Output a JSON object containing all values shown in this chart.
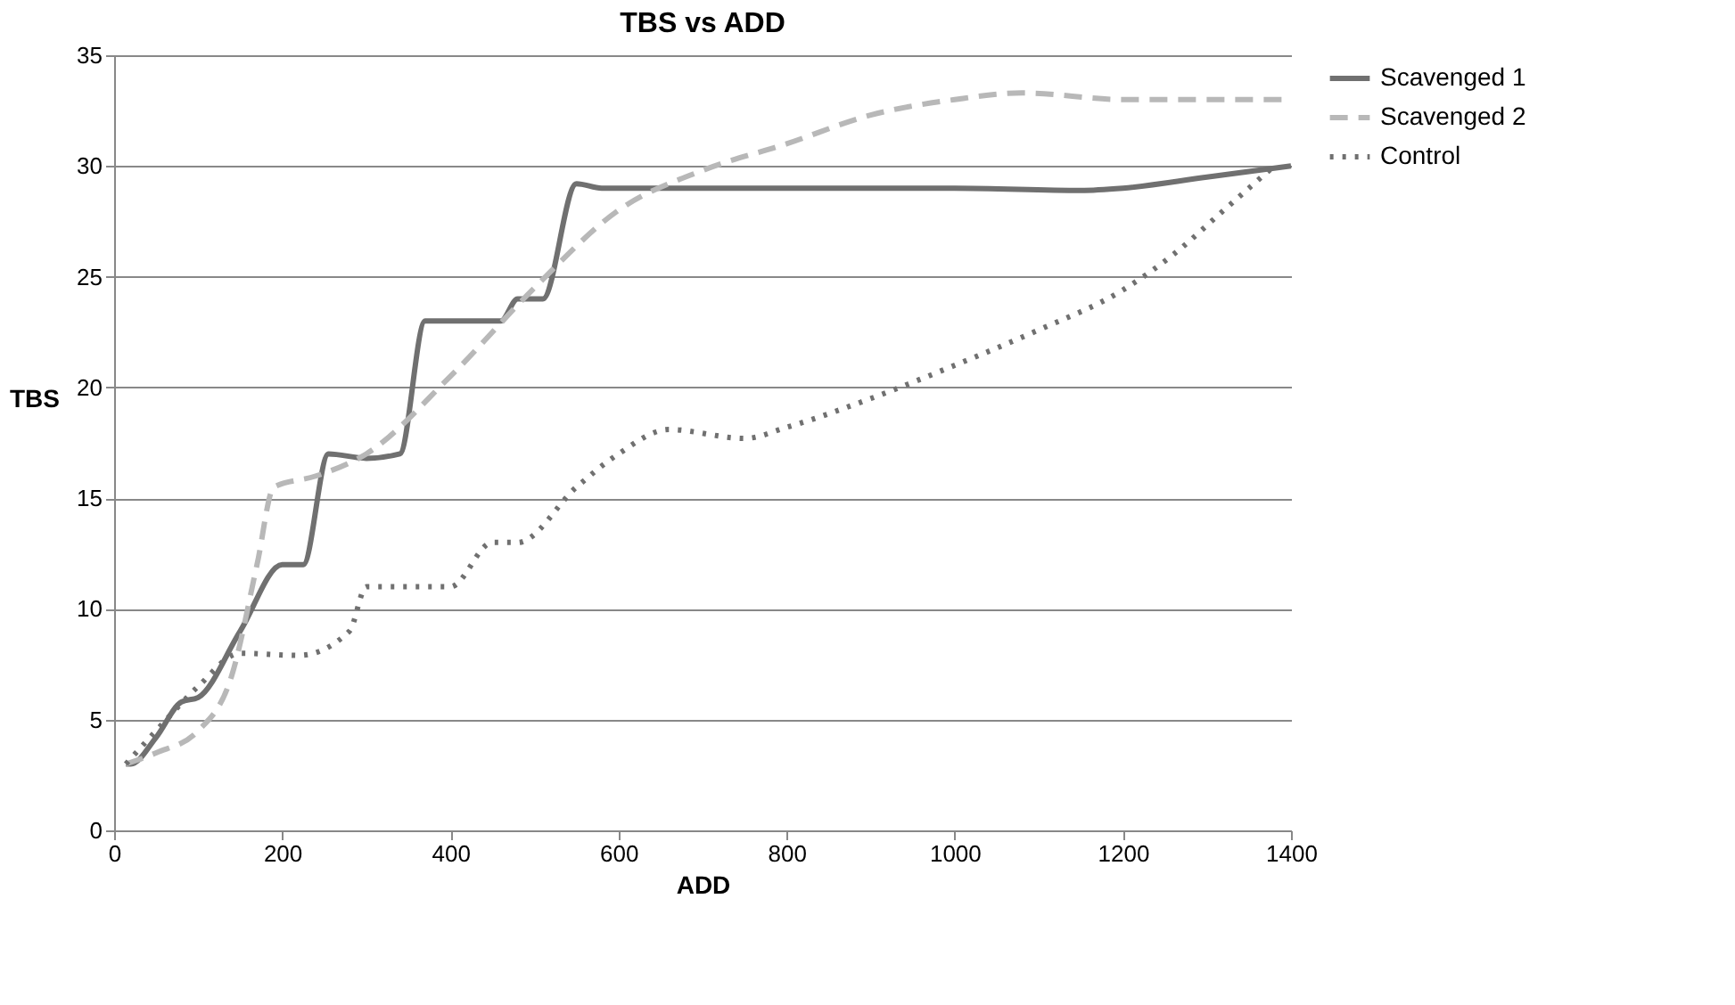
{
  "chart_data": {
    "type": "line",
    "title": "TBS vs ADD",
    "xlabel": "ADD",
    "ylabel": "TBS",
    "xlim": [
      0,
      1400
    ],
    "xticks": [
      0,
      200,
      400,
      600,
      800,
      1000,
      1200,
      1400
    ],
    "ylim": [
      0,
      35
    ],
    "yticks": [
      0,
      5,
      10,
      15,
      20,
      25,
      30,
      35
    ],
    "grid": "y",
    "legend": "right",
    "marker": "none",
    "series": [
      {
        "name": "Scavenged 1",
        "color": "#707070",
        "line_style": "solid",
        "x": [
          14,
          20,
          50,
          80,
          100,
          150,
          200,
          225,
          255,
          300,
          340,
          370,
          420,
          460,
          480,
          510,
          550,
          580,
          800,
          1000,
          1150,
          1200,
          1300,
          1400
        ],
        "values": [
          3,
          3,
          4.2,
          5.8,
          6,
          9,
          12,
          12,
          17,
          16.8,
          17,
          23,
          23,
          23,
          24,
          24,
          29.2,
          29,
          29,
          29,
          28.9,
          29,
          29.5,
          30
        ]
      },
      {
        "name": "Scavenged 2",
        "color": "#b8b8b8",
        "line_style": "dashed",
        "x": [
          14,
          50,
          100,
          140,
          170,
          190,
          240,
          300,
          400,
          500,
          600,
          700,
          800,
          900,
          1000,
          1080,
          1200,
          1400
        ],
        "values": [
          3,
          3.5,
          4.5,
          7,
          12,
          15.5,
          16,
          17,
          20.5,
          24.5,
          28,
          29.8,
          31,
          32.3,
          33,
          33.3,
          33,
          33
        ]
      },
      {
        "name": "Control",
        "color": "#707070",
        "line_style": "dotted",
        "x": [
          14,
          50,
          100,
          150,
          220,
          280,
          300,
          360,
          400,
          450,
          480,
          550,
          600,
          660,
          750,
          800,
          900,
          1000,
          1100,
          1200,
          1260,
          1320,
          1380
        ],
        "values": [
          3,
          4.5,
          6.5,
          8,
          7.9,
          9,
          11,
          11,
          11,
          13,
          13,
          15.5,
          17,
          18.1,
          17.7,
          18.2,
          19.5,
          21,
          22.6,
          24.4,
          26,
          28,
          30
        ]
      }
    ]
  }
}
